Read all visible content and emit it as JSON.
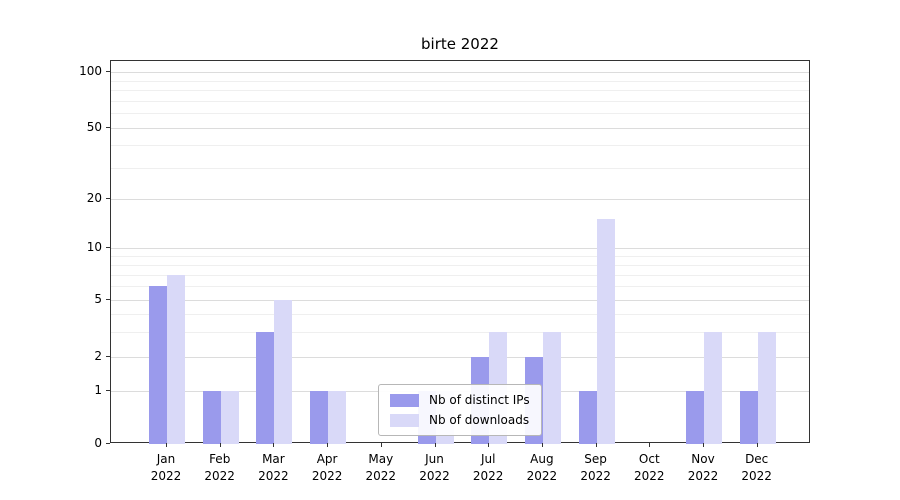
{
  "chart_data": {
    "type": "bar",
    "title": "birte 2022",
    "categories": [
      "Jan",
      "Feb",
      "Mar",
      "Apr",
      "May",
      "Jun",
      "Jul",
      "Aug",
      "Sep",
      "Oct",
      "Nov",
      "Dec"
    ],
    "year_label": "2022",
    "series": [
      {
        "name": "Nb of distinct IPs",
        "color": "#9a9aec",
        "values": [
          6,
          1,
          3,
          1,
          0,
          1,
          2,
          2,
          1,
          0,
          1,
          1
        ]
      },
      {
        "name": "Nb of downloads",
        "color": "#d9d9f8",
        "values": [
          7,
          1,
          5,
          1,
          0,
          1,
          3,
          3,
          15,
          0,
          3,
          3
        ]
      }
    ],
    "yticks": [
      0,
      1,
      2,
      5,
      10,
      20,
      50,
      100
    ],
    "minor_gridlines": [
      3,
      4,
      6,
      7,
      8,
      9,
      30,
      40,
      60,
      70,
      80,
      90
    ],
    "yscale": "symlog",
    "ylim": [
      0,
      110
    ],
    "grid": true,
    "legend_position": "lower center"
  }
}
